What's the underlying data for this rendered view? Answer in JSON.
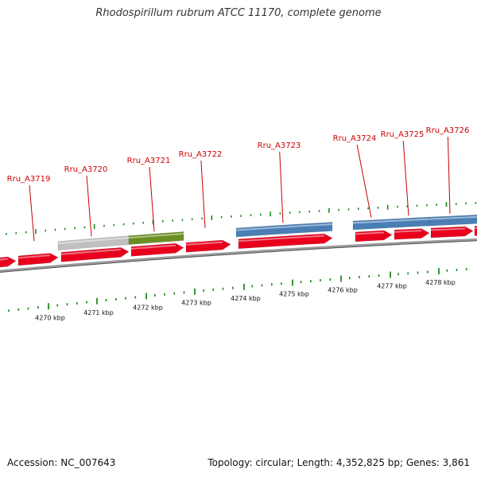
{
  "title": "Rhodospirillum rubrum ATCC 11170, complete genome",
  "footer": {
    "accession": "Accession: NC_007643",
    "summary": "Topology: circular; Length: 4,352,825 bp; Genes: 3,861"
  },
  "colors": {
    "cds": "#e8001c",
    "gene_label": "#cc0000",
    "tick": "#1f8a1f",
    "backbone": "#888888",
    "feature_blue": "#4a7fb5",
    "feature_green": "#6b8e23",
    "feature_gray": "#c0c0c0"
  },
  "gene_labels": [
    {
      "label": "Rru_A3719"
    },
    {
      "label": "Rru_A3720"
    },
    {
      "label": "Rru_A3721"
    },
    {
      "label": "Rru_A3722"
    },
    {
      "label": "Rru_A3723"
    },
    {
      "label": "Rru_A3724"
    },
    {
      "label": "Rru_A3725"
    },
    {
      "label": "Rru_A3726"
    }
  ],
  "kbp_labels": [
    "4270 kbp",
    "4271 kbp",
    "4272 kbp",
    "4273 kbp",
    "4274 kbp",
    "4275 kbp",
    "4276 kbp",
    "4277 kbp",
    "4278 kbp"
  ]
}
